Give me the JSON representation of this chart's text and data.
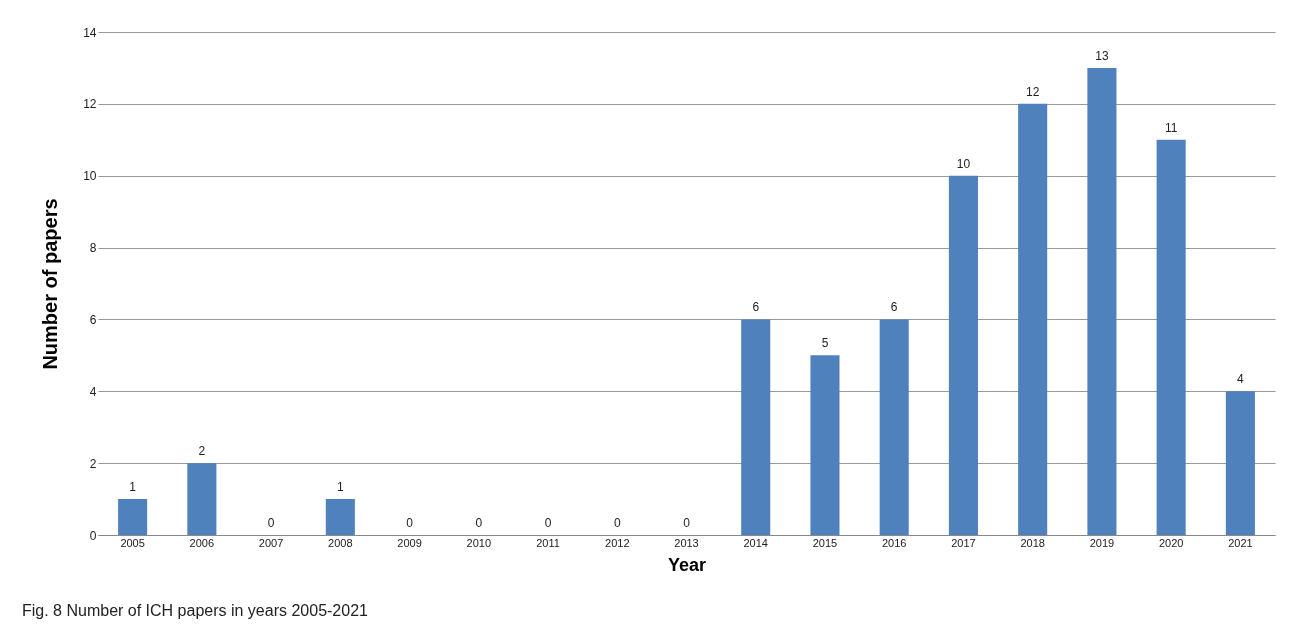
{
  "chart_data": {
    "type": "bar",
    "xlabel": "Year",
    "ylabel": "Number of papers",
    "categories": [
      "2005",
      "2006",
      "2007",
      "2008",
      "2009",
      "2010",
      "2011",
      "2012",
      "2013",
      "2014",
      "2015",
      "2016",
      "2017",
      "2018",
      "2019",
      "2020",
      "2021"
    ],
    "values": [
      1,
      2,
      0,
      1,
      0,
      0,
      0,
      0,
      0,
      6,
      5,
      6,
      10,
      12,
      13,
      11,
      4
    ],
    "color": "#4f81bd",
    "ylim": [
      0,
      14
    ],
    "yticks": [
      0,
      2,
      4,
      6,
      8,
      10,
      12,
      14
    ],
    "grid": "y",
    "data_labels": true,
    "annotations": [
      "Fig. 8 Number of ICH papers in years 2005-2021"
    ]
  }
}
